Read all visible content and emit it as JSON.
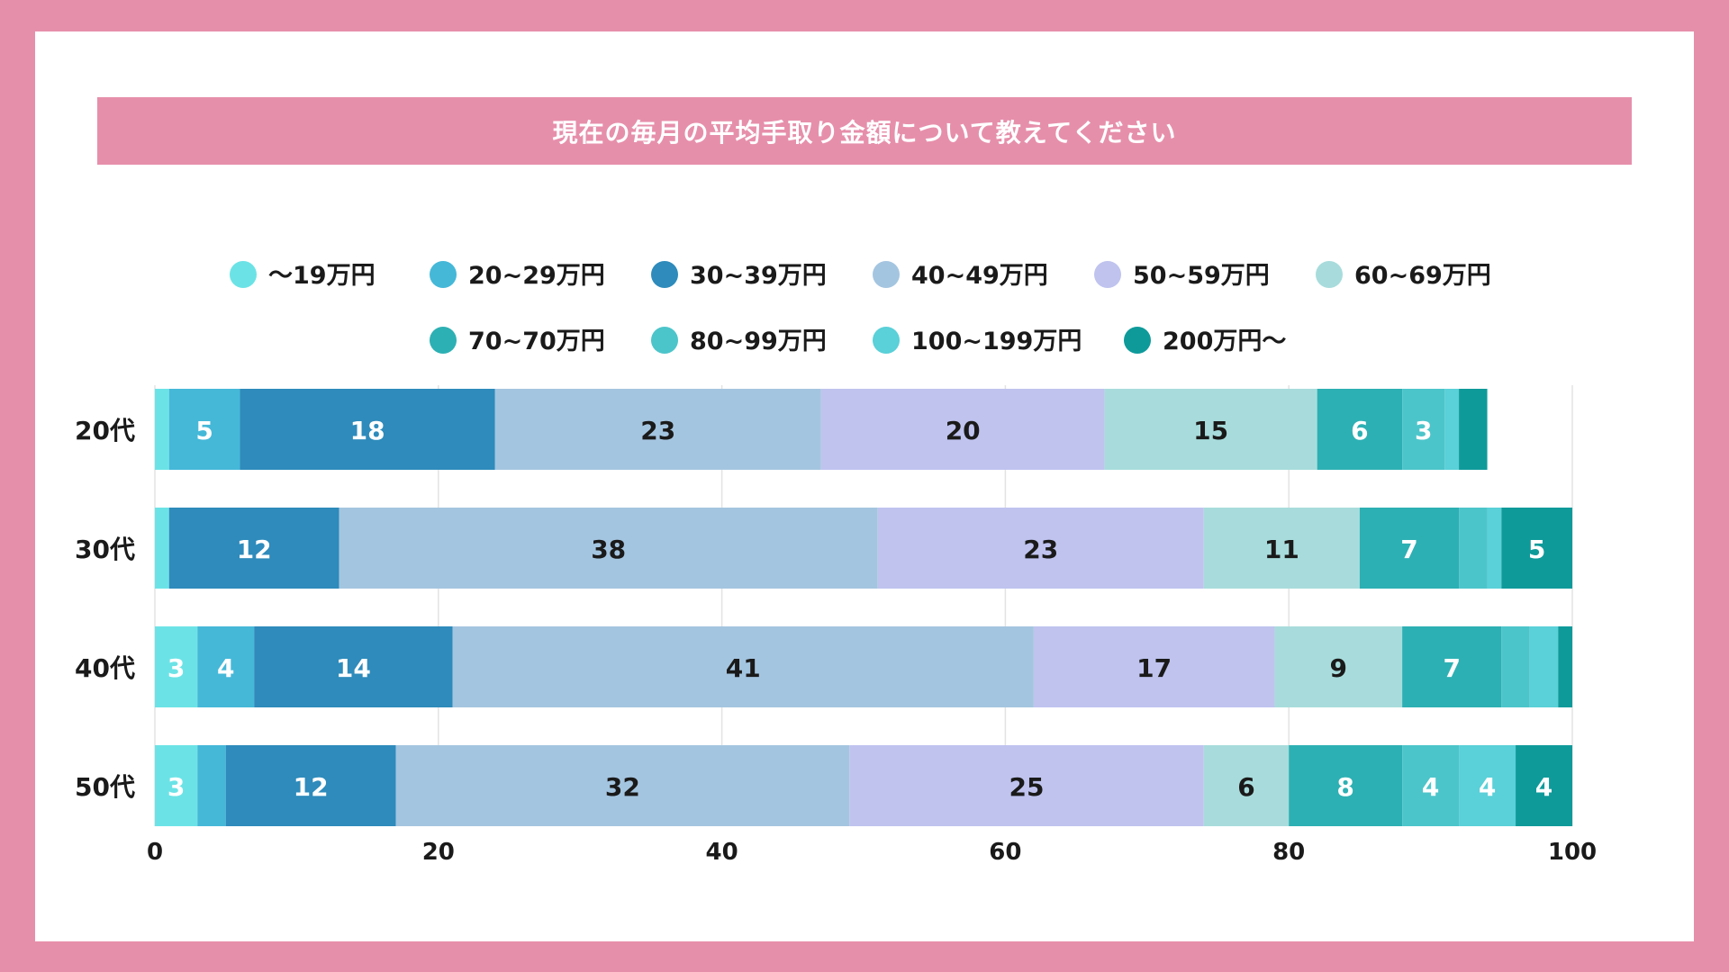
{
  "chart_data": {
    "type": "bar",
    "orientation": "horizontal",
    "stacked": true,
    "title": "現在の毎月の平均手取り金額について教えてください",
    "categories": [
      "20代",
      "30代",
      "40代",
      "50代"
    ],
    "x_ticks": [
      "0",
      "20",
      "40",
      "60",
      "80",
      "100"
    ],
    "xlim": [
      0,
      100
    ],
    "legend_position": "top",
    "series": [
      {
        "name": "〜19万円",
        "color": "#6be3e6",
        "values": [
          1,
          1,
          3,
          3
        ]
      },
      {
        "name": "20~29万円",
        "color": "#45b8d8",
        "values": [
          5,
          0,
          4,
          2
        ]
      },
      {
        "name": "30~39万円",
        "color": "#2e8bbb",
        "values": [
          18,
          12,
          14,
          12
        ]
      },
      {
        "name": "40~49万円",
        "color": "#a4c5e0",
        "values": [
          23,
          38,
          41,
          32
        ]
      },
      {
        "name": "50~59万円",
        "color": "#bfc3ee",
        "values": [
          20,
          23,
          17,
          25
        ]
      },
      {
        "name": "60~69万円",
        "color": "#a8dcdc",
        "values": [
          15,
          11,
          9,
          6
        ]
      },
      {
        "name": "70~70万円",
        "color": "#2db0b3",
        "values": [
          6,
          7,
          7,
          8
        ]
      },
      {
        "name": "80~99万円",
        "color": "#4cc5ca",
        "values": [
          3,
          2,
          2,
          4
        ]
      },
      {
        "name": "100~199万円",
        "color": "#5ad0d8",
        "values": [
          1,
          1,
          2,
          4
        ]
      },
      {
        "name": "200万円〜",
        "color": "#0f9a9a",
        "values": [
          2,
          5,
          1,
          4
        ]
      }
    ],
    "data_labels": [
      [
        "",
        "5",
        "18",
        "23",
        "20",
        "15",
        "6",
        "3",
        "",
        ""
      ],
      [
        "",
        "",
        "12",
        "38",
        "23",
        "11",
        "7",
        "",
        "",
        "5"
      ],
      [
        "3",
        "4",
        "14",
        "41",
        "17",
        "9",
        "7",
        "",
        "",
        ""
      ],
      [
        "3",
        "",
        "12",
        "32",
        "25",
        "6",
        "8",
        "4",
        "4",
        "4"
      ]
    ],
    "label_colors": {
      "dark": "#1a1a1a",
      "light": "#ffffff"
    }
  }
}
